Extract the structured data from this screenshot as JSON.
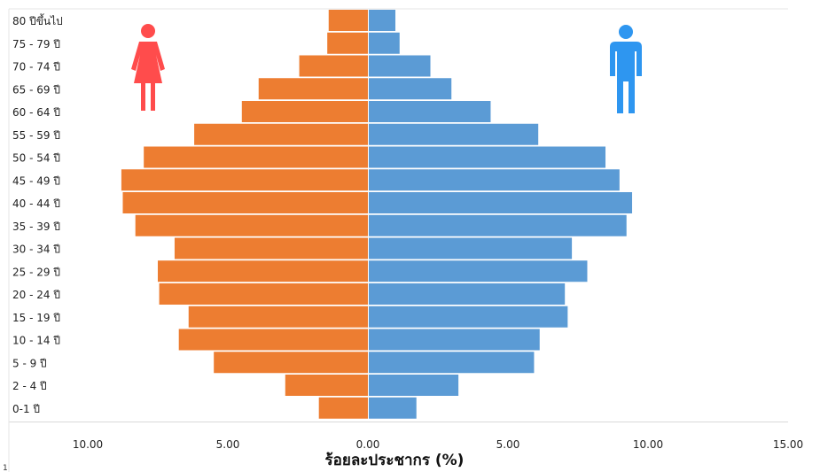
{
  "chart_data": {
    "type": "bar",
    "orientation": "horizontal",
    "subtype": "population-pyramid",
    "categories": [
      "80 ปีขึ้นไป",
      "75 - 79 ปี",
      "70 - 74 ปี",
      "65 - 69 ปี",
      "60 - 64 ปี",
      "55 - 59 ปี",
      "50 - 54 ปี",
      "45 - 49 ปี",
      "40 - 44 ปี",
      "35 - 39 ปี",
      "30 - 34 ปี",
      "25 - 29 ปี",
      "20 - 24 ปี",
      "15 - 19 ปี",
      "10 - 14 ปี",
      "5 - 9 ปี",
      "2 - 4 ปี",
      "0-1 ปี"
    ],
    "series": [
      {
        "color": "#ED7D31",
        "side": "left",
        "values": [
          1.4,
          1.45,
          2.45,
          3.9,
          4.5,
          6.2,
          8.0,
          8.8,
          8.75,
          8.3,
          6.9,
          7.5,
          7.45,
          6.4,
          6.75,
          5.5,
          2.95,
          1.75
        ]
      },
      {
        "color": "#5B9BD5",
        "side": "right",
        "values": [
          0.95,
          1.1,
          2.2,
          2.95,
          4.35,
          6.05,
          8.45,
          8.95,
          9.4,
          9.2,
          7.25,
          7.8,
          7.0,
          7.1,
          6.1,
          5.9,
          3.2,
          1.7
        ]
      }
    ],
    "xticks": [
      "10.00",
      "5.00",
      "0.00",
      "5.00",
      "10.00",
      "15.00"
    ],
    "xlim": [
      -10,
      15
    ],
    "xlabel": "ร้อยละประชากร (%)",
    "footnote": "1",
    "icons": {
      "female": "female-figure-icon",
      "male": "male-figure-icon",
      "female_color": "#FF4C4C",
      "male_color": "#2E96F0"
    }
  }
}
